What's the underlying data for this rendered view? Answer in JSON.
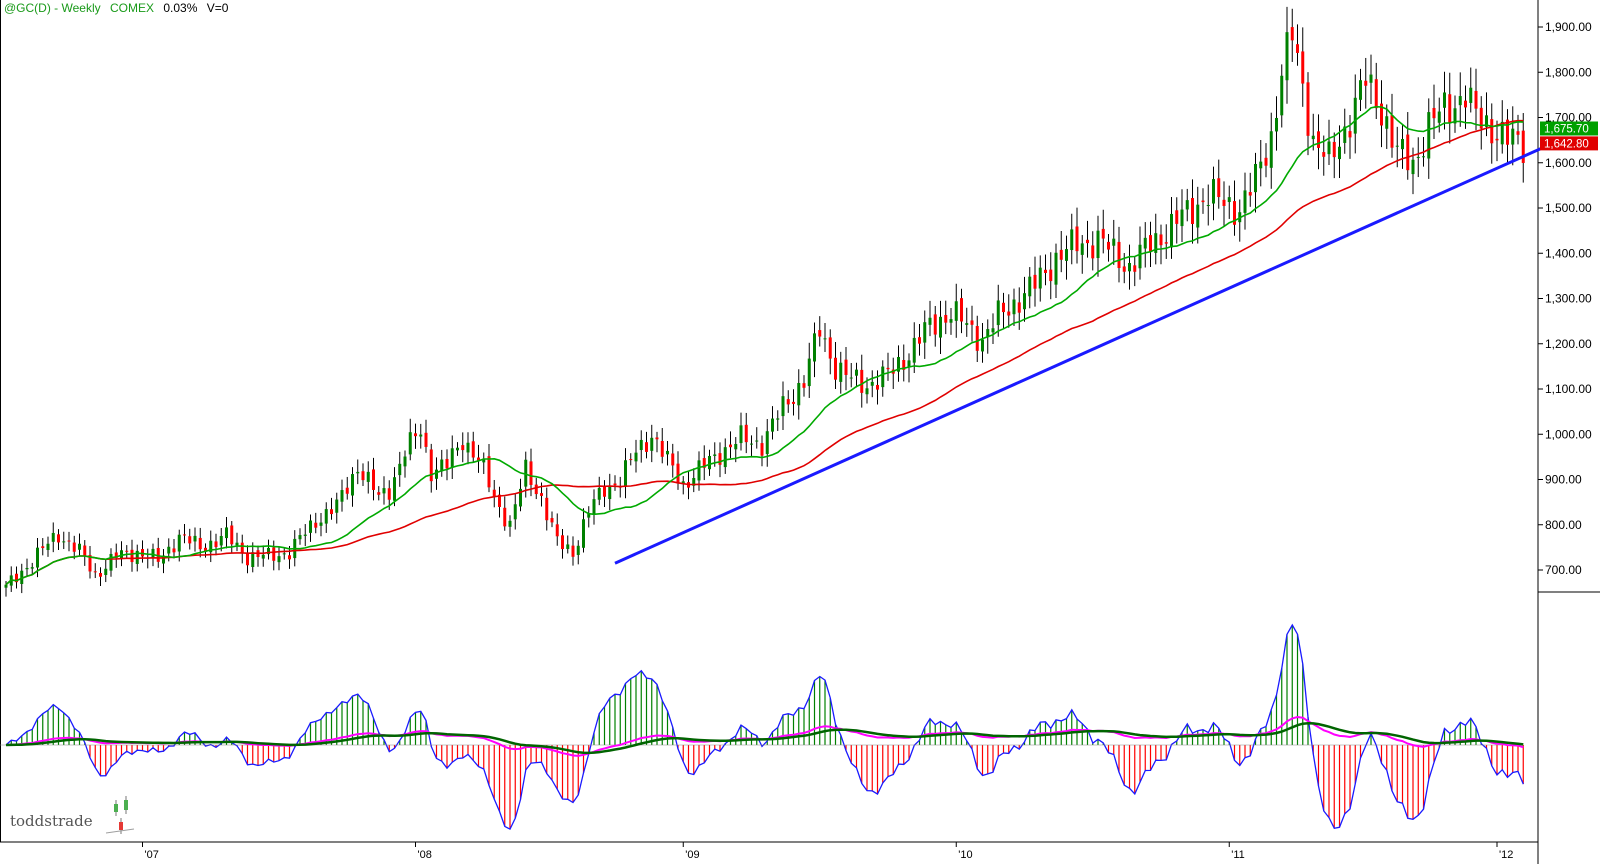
{
  "header": {
    "symbol": "@GC(D) - Weekly",
    "exchange": "COMEX",
    "change": "0.03%",
    "volume": "V=0"
  },
  "watermark": "toddstrade",
  "colors": {
    "up": "#008000",
    "down": "#ff0000",
    "fast_ma": "#00aa00",
    "slow_ma": "#e00000",
    "trendline": "#1a1aff",
    "macd_line": "#ff00ff",
    "signal_line": "#006400",
    "hist_outline": "#1a1aff"
  },
  "chart_data": [
    {
      "type": "candlestick",
      "ylim": [
        650,
        1950
      ],
      "y_ticks": [
        "700.00",
        "800.00",
        "900.00",
        "1,000.00",
        "1,100.00",
        "1,200.00",
        "1,300.00",
        "1,400.00",
        "1,500.00",
        "1,600.00",
        "1,700.00",
        "1,800.00",
        "1,900.00"
      ],
      "x_ticks": [
        "'07",
        "'08",
        "'09",
        "'10",
        "'11",
        "'12"
      ],
      "price_tags": [
        {
          "value": 1675.7,
          "label": "1,675.70",
          "color": "#00a000"
        },
        {
          "value": 1642.8,
          "label": "1,642.80",
          "color": "#e00000"
        }
      ],
      "price_path": [
        [
          0,
          660
        ],
        [
          4,
          710
        ],
        [
          10,
          780
        ],
        [
          14,
          740
        ],
        [
          17,
          690
        ],
        [
          21,
          730
        ],
        [
          25,
          740
        ],
        [
          29,
          720
        ],
        [
          33,
          775
        ],
        [
          37,
          750
        ],
        [
          42,
          775
        ],
        [
          46,
          730
        ],
        [
          50,
          730
        ],
        [
          54,
          740
        ],
        [
          59,
          810
        ],
        [
          63,
          840
        ],
        [
          67,
          930
        ],
        [
          71,
          860
        ],
        [
          73,
          880
        ],
        [
          76,
          960
        ],
        [
          79,
          1010
        ],
        [
          81,
          920
        ],
        [
          84,
          930
        ],
        [
          87,
          990
        ],
        [
          89,
          960
        ],
        [
          91,
          920
        ],
        [
          93,
          860
        ],
        [
          96,
          800
        ],
        [
          99,
          920
        ],
        [
          102,
          860
        ],
        [
          105,
          760
        ],
        [
          108,
          740
        ],
        [
          111,
          830
        ],
        [
          114,
          880
        ],
        [
          117,
          900
        ],
        [
          120,
          960
        ],
        [
          123,
          1000
        ],
        [
          126,
          940
        ],
        [
          129,
          890
        ],
        [
          133,
          930
        ],
        [
          136,
          960
        ],
        [
          140,
          990
        ],
        [
          144,
          980
        ],
        [
          148,
          1060
        ],
        [
          152,
          1120
        ],
        [
          155,
          1230
        ],
        [
          158,
          1150
        ],
        [
          161,
          1120
        ],
        [
          164,
          1110
        ],
        [
          168,
          1130
        ],
        [
          172,
          1180
        ],
        [
          176,
          1240
        ],
        [
          180,
          1270
        ],
        [
          183,
          1240
        ],
        [
          186,
          1210
        ],
        [
          189,
          1260
        ],
        [
          192,
          1290
        ],
        [
          196,
          1330
        ],
        [
          200,
          1390
        ],
        [
          204,
          1420
        ],
        [
          208,
          1430
        ],
        [
          211,
          1400
        ],
        [
          214,
          1370
        ],
        [
          218,
          1420
        ],
        [
          222,
          1460
        ],
        [
          226,
          1500
        ],
        [
          229,
          1530
        ],
        [
          232,
          1510
        ],
        [
          235,
          1500
        ],
        [
          238,
          1560
        ],
        [
          241,
          1660
        ],
        [
          243,
          1800
        ],
        [
          245,
          1880
        ],
        [
          247,
          1770
        ],
        [
          249,
          1650
        ],
        [
          252,
          1600
        ],
        [
          256,
          1700
        ],
        [
          259,
          1780
        ],
        [
          262,
          1720
        ],
        [
          265,
          1620
        ],
        [
          268,
          1600
        ],
        [
          271,
          1680
        ],
        [
          274,
          1720
        ],
        [
          278,
          1750
        ],
        [
          280,
          1700
        ],
        [
          283,
          1680
        ],
        [
          286,
          1650
        ],
        [
          289,
          1640
        ]
      ],
      "series": [
        {
          "name": "fast MA",
          "kind": "sma",
          "period": 20
        },
        {
          "name": "slow MA",
          "kind": "sma",
          "period": 50
        }
      ],
      "trendline": {
        "start": [
          116,
          715
        ],
        "end": [
          295,
          1645
        ]
      }
    },
    {
      "type": "histogram",
      "series": [
        {
          "name": "histogram"
        },
        {
          "name": "fast line"
        },
        {
          "name": "signal line"
        }
      ]
    }
  ]
}
